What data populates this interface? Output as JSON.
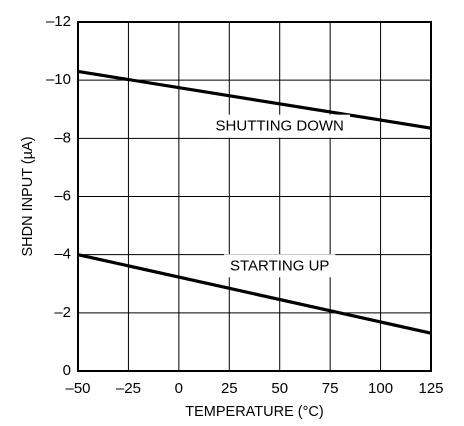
{
  "chart_data": {
    "type": "line",
    "title": "",
    "xlabel": "TEMPERATURE (°C)",
    "ylabel": "SHDN INPUT (µA)",
    "xlim": [
      -50,
      125
    ],
    "ylim": [
      0,
      -12
    ],
    "y_reversed": true,
    "grid": true,
    "legend": "none",
    "xticks": [
      -50,
      -25,
      0,
      25,
      50,
      75,
      100,
      125
    ],
    "xtick_labels": [
      "–50",
      "–25",
      "0",
      "25",
      "50",
      "75",
      "100",
      "125"
    ],
    "yticks": [
      0,
      -2,
      -4,
      -6,
      -8,
      -10,
      -12
    ],
    "ytick_labels": [
      "0",
      "–2",
      "–4",
      "–6",
      "–8",
      "–10",
      "–12"
    ],
    "series": [
      {
        "x": [
          -50,
          125
        ],
        "y": [
          -10.3,
          -8.35
        ],
        "color": "#000000"
      },
      {
        "x": [
          -50,
          125
        ],
        "y": [
          -4.0,
          -1.3
        ],
        "color": "#000000"
      }
    ],
    "annotations": [
      {
        "text": "SHUTTING DOWN",
        "x": 50,
        "y": -8.4
      },
      {
        "text": "STARTING UP",
        "x": 50,
        "y": -3.6
      }
    ]
  }
}
